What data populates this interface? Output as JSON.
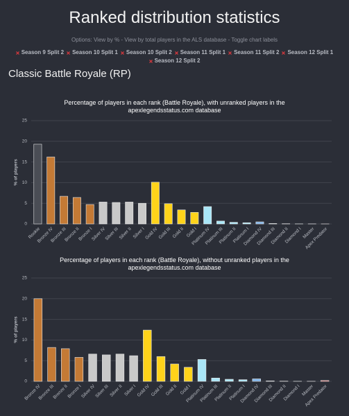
{
  "header": {
    "title": "Ranked distribution statistics",
    "options": "Options: View by % - View by total players in the ALS database - Toggle chart labels",
    "seasons": [
      "Season 9 Split 2",
      "Season 10 Split 1",
      "Season 10 Split 2",
      "Season 11 Split 1",
      "Season 11 Split 2",
      "Season 12 Split 1",
      "Season 12 Split 2"
    ],
    "section": "Classic Battle Royale (RP)"
  },
  "chart_data": [
    {
      "type": "bar",
      "title": "Percentage of players in each rank (Battle Royale), with unranked players in the apexlegendsstatus.com database",
      "y_label": "% of players",
      "categories": [
        "Rookie",
        "Bronze IV",
        "Bronze III",
        "Bronze II",
        "Bronze I",
        "Silver IV",
        "Silver III",
        "Silver II",
        "Silver I",
        "Gold IV",
        "Gold III",
        "Gold II",
        "Gold I",
        "Platinum IV",
        "Platinum III",
        "Platinum II",
        "Platinum I",
        "Diamond IV",
        "Diamond III",
        "Diamond II",
        "Diamond I",
        "Master",
        "Apex Predator"
      ],
      "values": [
        19.3,
        16.2,
        6.7,
        6.4,
        4.7,
        5.3,
        5.2,
        5.3,
        5.0,
        10.1,
        4.9,
        3.4,
        2.8,
        4.2,
        0.7,
        0.4,
        0.3,
        0.5,
        0.1,
        0.05,
        0.02,
        0.02,
        0.01
      ],
      "colors": [
        "#4a4d55",
        "#c47a35",
        "#c47a35",
        "#c47a35",
        "#c47a35",
        "#c9c9c9",
        "#c9c9c9",
        "#c9c9c9",
        "#c9c9c9",
        "#ffd31a",
        "#ffd31a",
        "#ffd31a",
        "#ffd31a",
        "#a9e6f7",
        "#a9e6f7",
        "#a9e6f7",
        "#a9e6f7",
        "#7fb3e8",
        "#7fb3e8",
        "#7fb3e8",
        "#7fb3e8",
        "#b05ad8",
        "#d9534f"
      ],
      "ylim": [
        0,
        25
      ],
      "yticks": [
        0,
        5,
        10,
        15,
        20,
        25
      ],
      "grid": true
    },
    {
      "type": "bar",
      "title": "Percentage of players in each rank (Battle Royale), without unranked players in the apexlegendsstatus.com database",
      "y_label": "% of players",
      "categories": [
        "Bronze IV",
        "Bronze III",
        "Bronze II",
        "Bronze I",
        "Silver IV",
        "Silver III",
        "Silver II",
        "Silver I",
        "Gold IV",
        "Gold III",
        "Gold II",
        "Gold I",
        "Platinum IV",
        "Platinum III",
        "Platinum II",
        "Platinum I",
        "Diamond IV",
        "Diamond III",
        "Diamond II",
        "Diamond I",
        "Master",
        "Apex Predator"
      ],
      "values": [
        20.0,
        8.2,
        7.9,
        5.8,
        6.6,
        6.4,
        6.6,
        6.2,
        12.4,
        6.0,
        4.2,
        3.4,
        5.3,
        0.8,
        0.5,
        0.4,
        0.6,
        0.1,
        0.05,
        0.02,
        0.02,
        0.2
      ],
      "colors": [
        "#c47a35",
        "#c47a35",
        "#c47a35",
        "#c47a35",
        "#c9c9c9",
        "#c9c9c9",
        "#c9c9c9",
        "#c9c9c9",
        "#ffd31a",
        "#ffd31a",
        "#ffd31a",
        "#ffd31a",
        "#a9e6f7",
        "#a9e6f7",
        "#a9e6f7",
        "#a9e6f7",
        "#7fb3e8",
        "#7fb3e8",
        "#7fb3e8",
        "#7fb3e8",
        "#b05ad8",
        "#d9534f"
      ],
      "ylim": [
        0,
        25
      ],
      "yticks": [
        0,
        5,
        10,
        15,
        20,
        25
      ],
      "grid": true
    }
  ]
}
